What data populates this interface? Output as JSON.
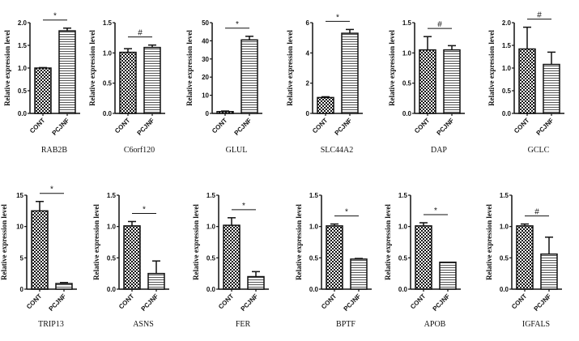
{
  "chart_data": [
    {
      "type": "bar",
      "title": "RAB2B",
      "categories": [
        "CONT",
        "PCJNF"
      ],
      "values": [
        1.0,
        1.82
      ],
      "errors": [
        0.01,
        0.06
      ],
      "ylabel": "Relative expression level",
      "ylim": [
        0,
        2
      ],
      "yticks": [
        "0.0",
        "0.5",
        "1.0",
        "1.5",
        "2.0"
      ],
      "tickvals": [
        0,
        0.5,
        1,
        1.5,
        2
      ],
      "significance": "*"
    },
    {
      "type": "bar",
      "title": "C6orf120",
      "categories": [
        "CONT",
        "PCJNF"
      ],
      "values": [
        1.01,
        1.09
      ],
      "errors": [
        0.06,
        0.04
      ],
      "ylabel": "Relative expression level",
      "ylim": [
        0,
        1.5
      ],
      "yticks": [
        "0.0",
        "0.5",
        "1.0",
        "1.5"
      ],
      "tickvals": [
        0,
        0.5,
        1,
        1.5
      ],
      "significance": "#"
    },
    {
      "type": "bar",
      "title": "GLUL",
      "categories": [
        "CONT",
        "PCJNF"
      ],
      "values": [
        1.0,
        40.5
      ],
      "errors": [
        0.3,
        2.0
      ],
      "ylabel": "Relative expression level",
      "ylim": [
        0,
        50
      ],
      "yticks": [
        "0",
        "10",
        "20",
        "30",
        "40",
        "50"
      ],
      "tickvals": [
        0,
        10,
        20,
        30,
        40,
        50
      ],
      "significance": "*"
    },
    {
      "type": "bar",
      "title": "SLC44A2",
      "categories": [
        "CONT",
        "PCJNF"
      ],
      "values": [
        1.05,
        5.3
      ],
      "errors": [
        0.05,
        0.25
      ],
      "ylabel": "Relative expression level",
      "ylim": [
        0,
        6
      ],
      "yticks": [
        "0",
        "2",
        "4",
        "6"
      ],
      "tickvals": [
        0,
        2,
        4,
        6
      ],
      "significance": "*"
    },
    {
      "type": "bar",
      "title": "DAP",
      "categories": [
        "CONT",
        "PCJNF"
      ],
      "values": [
        1.05,
        1.05
      ],
      "errors": [
        0.22,
        0.07
      ],
      "ylabel": "Relative expression level",
      "ylim": [
        0,
        1.5
      ],
      "yticks": [
        "0.0",
        "0.5",
        "1.0",
        "1.5"
      ],
      "tickvals": [
        0,
        0.5,
        1,
        1.5
      ],
      "significance": "#"
    },
    {
      "type": "bar",
      "title": "GCLC",
      "categories": [
        "CONT",
        "PCJNF"
      ],
      "values": [
        1.42,
        1.08
      ],
      "errors": [
        0.48,
        0.27
      ],
      "ylabel": "Relative expression level",
      "ylim": [
        0,
        2
      ],
      "yticks": [
        "0.0",
        "0.5",
        "1.0",
        "1.5",
        "2.0"
      ],
      "tickvals": [
        0,
        0.5,
        1,
        1.5,
        2
      ],
      "significance": "#"
    },
    {
      "type": "bar",
      "title": "TRIP13",
      "categories": [
        "CONT",
        "PCJNF"
      ],
      "values": [
        12.5,
        0.9
      ],
      "errors": [
        1.5,
        0.15
      ],
      "ylabel": "Relative expression level",
      "ylim": [
        0,
        15
      ],
      "yticks": [
        "0",
        "5",
        "10",
        "15"
      ],
      "tickvals": [
        0,
        5,
        10,
        15
      ],
      "significance": "*"
    },
    {
      "type": "bar",
      "title": "ASNS",
      "categories": [
        "CONT",
        "PCJNF"
      ],
      "values": [
        1.01,
        0.25
      ],
      "errors": [
        0.07,
        0.2
      ],
      "ylabel": "Relative expression level",
      "ylim": [
        0,
        1.5
      ],
      "yticks": [
        "0.0",
        "0.5",
        "1.0",
        "1.5"
      ],
      "tickvals": [
        0,
        0.5,
        1,
        1.5
      ],
      "significance": "*"
    },
    {
      "type": "bar",
      "title": "FER",
      "categories": [
        "CONT",
        "PCJNF"
      ],
      "values": [
        1.02,
        0.2
      ],
      "errors": [
        0.12,
        0.08
      ],
      "ylabel": "Relative expression level",
      "ylim": [
        0,
        1.5
      ],
      "yticks": [
        "0.0",
        "0.5",
        "1.0",
        "1.5"
      ],
      "tickvals": [
        0,
        0.5,
        1,
        1.5
      ],
      "significance": "*"
    },
    {
      "type": "bar",
      "title": "BPTF",
      "categories": [
        "CONT",
        "PCJNF"
      ],
      "values": [
        1.01,
        0.48
      ],
      "errors": [
        0.03,
        0.01
      ],
      "ylabel": "Relative expression level",
      "ylim": [
        0,
        1.5
      ],
      "yticks": [
        "0.0",
        "0.5",
        "1.0",
        "1.5"
      ],
      "tickvals": [
        0,
        0.5,
        1,
        1.5
      ],
      "significance": "*"
    },
    {
      "type": "bar",
      "title": "APOB",
      "categories": [
        "CONT",
        "PCJNF"
      ],
      "values": [
        1.01,
        0.43
      ],
      "errors": [
        0.05,
        0.0
      ],
      "ylabel": "Relative expression level",
      "ylim": [
        0,
        1.5
      ],
      "yticks": [
        "0.0",
        "0.5",
        "1.0",
        "1.5"
      ],
      "tickvals": [
        0,
        0.5,
        1,
        1.5
      ],
      "significance": "*"
    },
    {
      "type": "bar",
      "title": "IGFALS",
      "categories": [
        "CONT",
        "PCJNF"
      ],
      "values": [
        1.01,
        0.56
      ],
      "errors": [
        0.03,
        0.27
      ],
      "ylabel": "Relative expression level",
      "ylim": [
        0,
        1.5
      ],
      "yticks": [
        "0.0",
        "0.5",
        "1.0",
        "1.5"
      ],
      "tickvals": [
        0,
        0.5,
        1,
        1.5
      ],
      "significance": "#"
    }
  ],
  "colors": {
    "ink": "#111111",
    "stripe_light": "#d8d8d8"
  }
}
